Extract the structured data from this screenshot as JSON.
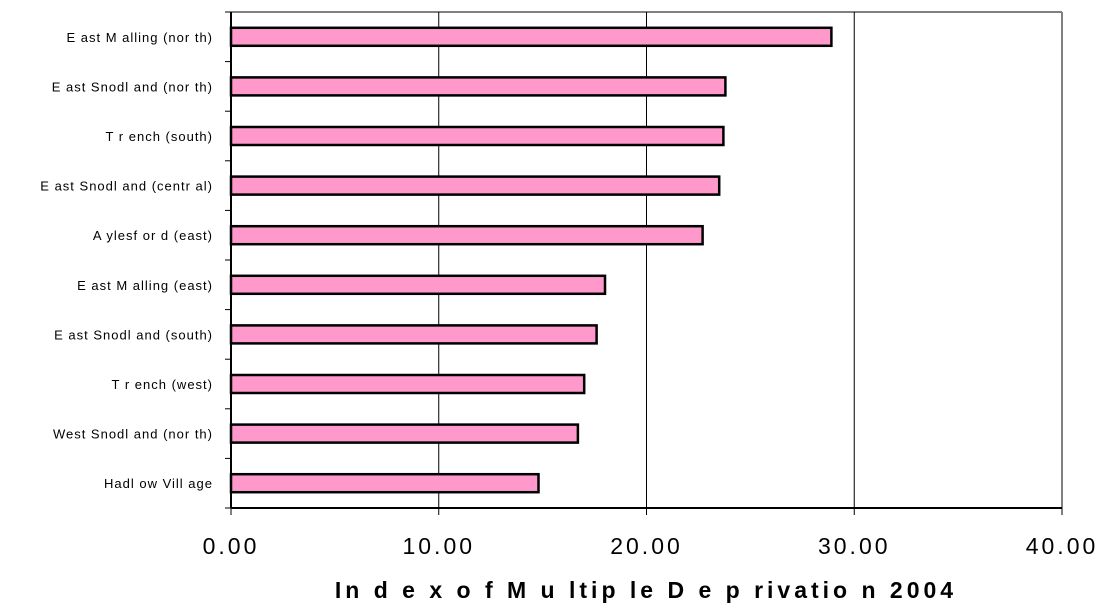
{
  "chart_data": {
    "type": "bar",
    "orientation": "horizontal",
    "categories": [
      "E ast M alling (nor th)",
      "E ast Snodl and (nor th)",
      "T r ench (south)",
      "E ast Snodl and (centr al)",
      "A ylesf or d (east)",
      "E ast M alling (east)",
      "E ast Snodl and (south)",
      "T r ench (west)",
      "West Snodl and (nor th)",
      "Hadl ow Vill age"
    ],
    "values": [
      28.9,
      23.8,
      23.7,
      23.5,
      22.7,
      18.0,
      17.6,
      17.0,
      16.7,
      14.8
    ],
    "xlabel": "In d e x o f M u ltip le D e p rivatio n 2004",
    "xlim": [
      0,
      40
    ],
    "xticks": [
      "0.00",
      "10.00",
      "20.00",
      "30.00",
      "40.00"
    ],
    "grid": true,
    "bar_color": "#ff99cc",
    "bar_edge_color": "#000000"
  }
}
